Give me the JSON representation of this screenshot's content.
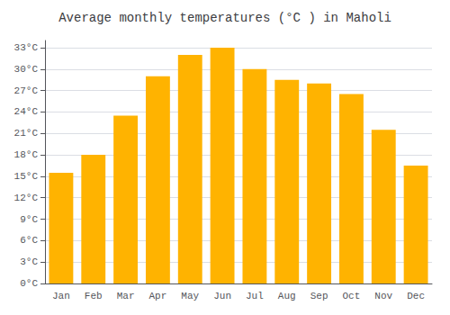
{
  "chart_data": {
    "type": "bar",
    "title": "Average monthly temperatures (°C ) in Maholi",
    "categories": [
      "Jan",
      "Feb",
      "Mar",
      "Apr",
      "May",
      "Jun",
      "Jul",
      "Aug",
      "Sep",
      "Oct",
      "Nov",
      "Dec"
    ],
    "values": [
      15.5,
      18.0,
      23.5,
      29.0,
      32.0,
      33.0,
      30.0,
      28.5,
      28.0,
      26.5,
      21.5,
      16.5
    ],
    "color": "#FFB300",
    "ylim": [
      0,
      34
    ],
    "yticks": [
      {
        "value": 0,
        "label": "0°C"
      },
      {
        "value": 3,
        "label": "3°C"
      },
      {
        "value": 6,
        "label": "6°C"
      },
      {
        "value": 9,
        "label": "9°C"
      },
      {
        "value": 12,
        "label": "12°C"
      },
      {
        "value": 15,
        "label": "15°C"
      },
      {
        "value": 18,
        "label": "18°C"
      },
      {
        "value": 21,
        "label": "21°C"
      },
      {
        "value": 24,
        "label": "24°C"
      },
      {
        "value": 27,
        "label": "27°C"
      },
      {
        "value": 30,
        "label": "30°C"
      },
      {
        "value": 33,
        "label": "33°C"
      }
    ],
    "grid": true
  }
}
